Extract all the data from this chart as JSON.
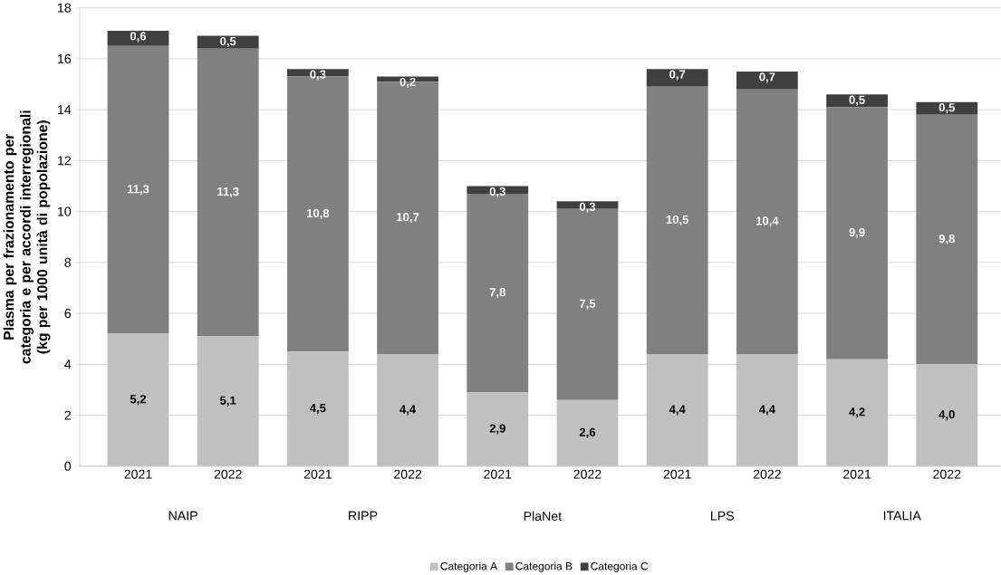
{
  "chart_data": {
    "type": "bar",
    "stacked": true,
    "ylabel": "Plasma per frazionamento per categoria e per accordi interregionali (kg per 1000 unità di popolazione)",
    "categories": [
      "2021",
      "2022",
      "2021",
      "2022",
      "2021",
      "2022",
      "2021",
      "2022",
      "2021",
      "2022"
    ],
    "annotations": [
      "NAIP",
      "RIPP",
      "PlaNet",
      "LPS",
      "ITALIA"
    ],
    "series": [
      {
        "name": "Categoria A",
        "color": "#c0c0c0",
        "values": [
          5.2,
          5.1,
          4.5,
          4.4,
          2.9,
          2.6,
          4.4,
          4.4,
          4.2,
          4.0
        ],
        "value_labels": [
          "5,2",
          "5,1",
          "4,5",
          "4,4",
          "2,9",
          "2,6",
          "4,4",
          "4,4",
          "4,2",
          "4,0"
        ]
      },
      {
        "name": "Categoria B",
        "color": "#808080",
        "values": [
          11.3,
          11.3,
          10.8,
          10.7,
          7.8,
          7.5,
          10.5,
          10.4,
          9.9,
          9.8
        ],
        "value_labels": [
          "11,3",
          "11,3",
          "10,8",
          "10,7",
          "7,8",
          "7,5",
          "10,5",
          "10,4",
          "9,9",
          "9,8"
        ]
      },
      {
        "name": "Categoria C",
        "color": "#404040",
        "values": [
          0.6,
          0.5,
          0.3,
          0.2,
          0.3,
          0.3,
          0.7,
          0.7,
          0.5,
          0.5
        ],
        "value_labels": [
          "0,6",
          "0,5",
          "0,3",
          "0,2",
          "0,3",
          "0,3",
          "0,7",
          "0,7",
          "0,5",
          "0,5"
        ]
      }
    ],
    "ylim": [
      0,
      18
    ],
    "yticks": [
      0,
      2,
      4,
      6,
      8,
      10,
      12,
      14,
      16,
      18
    ],
    "grid": "y",
    "legend": "bottom"
  }
}
